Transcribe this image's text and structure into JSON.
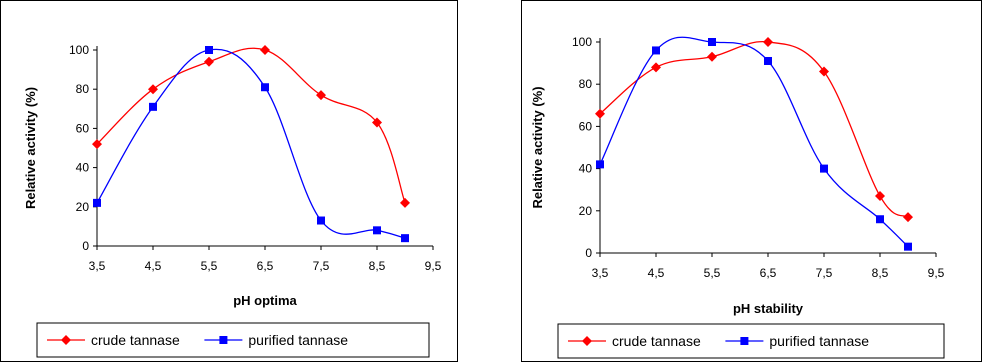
{
  "colors": {
    "crude": "#ff0000",
    "purified": "#0000ff",
    "axis": "#000000"
  },
  "chart_data": [
    {
      "type": "line",
      "xlabel": "pH optima",
      "ylabel": "Relative activity (%)",
      "xlim": [
        3.5,
        9.5
      ],
      "ylim": [
        0,
        100
      ],
      "xticks": [
        "3,5",
        "4,5",
        "5,5",
        "6,5",
        "7,5",
        "8,5",
        "9,5"
      ],
      "yticks": [
        "0",
        "20",
        "40",
        "60",
        "80",
        "100"
      ],
      "grid": false,
      "legend": "bottom",
      "series": [
        {
          "name": "crude tannase",
          "marker": "diamond",
          "x": [
            3.5,
            4.5,
            5.5,
            6.5,
            7.5,
            8.5,
            9.0
          ],
          "y": [
            52,
            80,
            94,
            100,
            77,
            63,
            22
          ]
        },
        {
          "name": "purified tannase",
          "marker": "square",
          "x": [
            3.5,
            4.5,
            5.5,
            6.5,
            7.5,
            8.5,
            9.0
          ],
          "y": [
            22,
            71,
            100,
            81,
            13,
            8,
            4
          ]
        }
      ]
    },
    {
      "type": "line",
      "xlabel": "pH stability",
      "ylabel": "Relative activity (%)",
      "xlim": [
        3.5,
        9.5
      ],
      "ylim": [
        0,
        100
      ],
      "xticks": [
        "3,5",
        "4,5",
        "5,5",
        "6,5",
        "7,5",
        "8,5",
        "9,5"
      ],
      "yticks": [
        "0",
        "20",
        "40",
        "60",
        "80",
        "100"
      ],
      "grid": false,
      "legend": "bottom",
      "series": [
        {
          "name": "crude tannase",
          "marker": "diamond",
          "x": [
            3.5,
            4.5,
            5.5,
            6.5,
            7.5,
            8.5,
            9.0
          ],
          "y": [
            66,
            88,
            93,
            100,
            86,
            27,
            17
          ]
        },
        {
          "name": "purified tannase",
          "marker": "square",
          "x": [
            3.5,
            4.5,
            5.5,
            6.5,
            7.5,
            8.5,
            9.0
          ],
          "y": [
            42,
            96,
            100,
            91,
            40,
            16,
            3
          ]
        }
      ]
    }
  ]
}
